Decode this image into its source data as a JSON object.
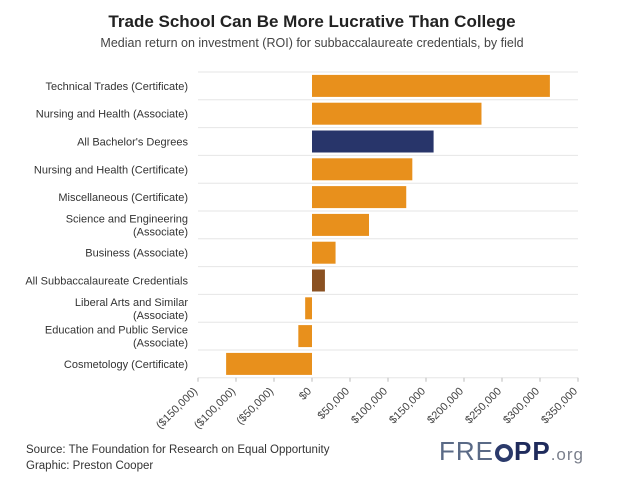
{
  "title": "Trade School Can Be More Lucrative Than College",
  "subtitle": "Median return on investment (ROI) for subbaccalaureate credentials, by field",
  "source": "Source: The Foundation for Research on Equal Opportunity",
  "graphic": "Graphic: Preston Cooper",
  "logo": {
    "pre": "FRE",
    "post": "PP",
    "suffix": ".org"
  },
  "colors": {
    "orange": "#E8901C",
    "navy": "#28356A",
    "brown": "#8A5122",
    "grid": "#e6e6e6"
  },
  "chart_data": {
    "type": "bar",
    "orientation": "horizontal",
    "categories": [
      [
        "Technical Trades (Certificate)"
      ],
      [
        "Nursing and Health (Associate)"
      ],
      [
        "All Bachelor's Degrees"
      ],
      [
        "Nursing and Health (Certificate)"
      ],
      [
        "Miscellaneous (Certificate)"
      ],
      [
        "Science and Engineering",
        "(Associate)"
      ],
      [
        "Business (Associate)"
      ],
      [
        "All Subbaccalaureate Credentials"
      ],
      [
        "Liberal Arts and Similar",
        "(Associate)"
      ],
      [
        "Education and Public Service",
        "(Associate)"
      ],
      [
        "Cosmetology (Certificate)"
      ]
    ],
    "values": [
      313000,
      223000,
      160000,
      132000,
      124000,
      75000,
      31000,
      17000,
      -9000,
      -18000,
      -113000
    ],
    "bar_colors": [
      "orange",
      "orange",
      "navy",
      "orange",
      "orange",
      "orange",
      "orange",
      "brown",
      "orange",
      "orange",
      "orange"
    ],
    "xlim": [
      -150000,
      350000
    ],
    "xticks": [
      -150000,
      -100000,
      -50000,
      0,
      50000,
      100000,
      150000,
      200000,
      250000,
      300000,
      350000
    ],
    "xtick_labels": [
      "($150,000)",
      "($100,000)",
      "($50,000)",
      "$0",
      "$50,000",
      "$100,000",
      "$150,000",
      "$200,000",
      "$250,000",
      "$300,000",
      "$350,000"
    ],
    "grid": true
  }
}
